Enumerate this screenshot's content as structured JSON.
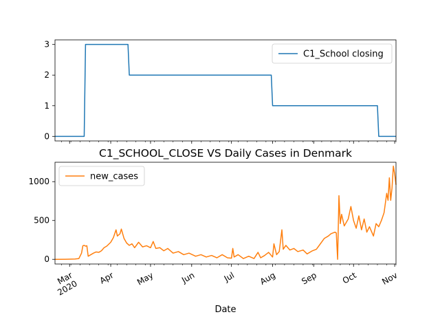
{
  "chart_data": [
    {
      "type": "line",
      "title": "",
      "xlabel": "",
      "ylabel": "",
      "ylim": [
        -0.15,
        3.15
      ],
      "yticks": [
        0,
        1,
        2,
        3
      ],
      "xlim": [
        "2020-02-19",
        "2020-11-02"
      ],
      "grid": false,
      "legend_position": "top-right",
      "series": [
        {
          "name": "C1_School closing",
          "color": "#1f77b4",
          "points": [
            [
              "2020-02-19",
              0
            ],
            [
              "2020-03-12",
              0
            ],
            [
              "2020-03-13",
              3
            ],
            [
              "2020-04-14",
              3
            ],
            [
              "2020-04-15",
              2
            ],
            [
              "2020-07-31",
              2
            ],
            [
              "2020-08-01",
              1
            ],
            [
              "2020-10-19",
              1
            ],
            [
              "2020-10-20",
              0
            ],
            [
              "2020-11-02",
              0
            ]
          ]
        }
      ]
    },
    {
      "type": "line",
      "title": "C1_SCHOOL_CLOSE VS Daily Cases in Denmark",
      "xlabel": "Date",
      "ylabel": "",
      "ylim": [
        -60,
        1250
      ],
      "yticks": [
        0,
        500,
        1000
      ],
      "xlim": [
        "2020-02-19",
        "2020-11-02"
      ],
      "x_ticks": [
        {
          "date": "2020-03-01",
          "label": "Mar",
          "sublabel": "2020"
        },
        {
          "date": "2020-04-01",
          "label": "Apr"
        },
        {
          "date": "2020-05-01",
          "label": "May"
        },
        {
          "date": "2020-06-01",
          "label": "Jun"
        },
        {
          "date": "2020-07-01",
          "label": "Jul"
        },
        {
          "date": "2020-08-01",
          "label": "Aug"
        },
        {
          "date": "2020-09-01",
          "label": "Sep"
        },
        {
          "date": "2020-10-01",
          "label": "Oct"
        },
        {
          "date": "2020-11-01",
          "label": "Nov"
        }
      ],
      "grid": false,
      "legend_position": "top-left",
      "series": [
        {
          "name": "new_cases",
          "color": "#ff7f0e",
          "points": [
            [
              "2020-02-19",
              0
            ],
            [
              "2020-02-27",
              1
            ],
            [
              "2020-03-05",
              4
            ],
            [
              "2020-03-08",
              10
            ],
            [
              "2020-03-10",
              80
            ],
            [
              "2020-03-11",
              175
            ],
            [
              "2020-03-12",
              180
            ],
            [
              "2020-03-13",
              170
            ],
            [
              "2020-03-14",
              175
            ],
            [
              "2020-03-15",
              40
            ],
            [
              "2020-03-17",
              60
            ],
            [
              "2020-03-19",
              80
            ],
            [
              "2020-03-21",
              95
            ],
            [
              "2020-03-23",
              90
            ],
            [
              "2020-03-25",
              110
            ],
            [
              "2020-03-27",
              150
            ],
            [
              "2020-03-29",
              170
            ],
            [
              "2020-04-01",
              220
            ],
            [
              "2020-04-03",
              280
            ],
            [
              "2020-04-05",
              380
            ],
            [
              "2020-04-06",
              300
            ],
            [
              "2020-04-08",
              330
            ],
            [
              "2020-04-09",
              390
            ],
            [
              "2020-04-11",
              270
            ],
            [
              "2020-04-13",
              210
            ],
            [
              "2020-04-15",
              180
            ],
            [
              "2020-04-17",
              200
            ],
            [
              "2020-04-19",
              150
            ],
            [
              "2020-04-22",
              220
            ],
            [
              "2020-04-25",
              160
            ],
            [
              "2020-04-28",
              175
            ],
            [
              "2020-05-01",
              150
            ],
            [
              "2020-05-03",
              230
            ],
            [
              "2020-05-05",
              140
            ],
            [
              "2020-05-08",
              150
            ],
            [
              "2020-05-11",
              110
            ],
            [
              "2020-05-14",
              140
            ],
            [
              "2020-05-18",
              80
            ],
            [
              "2020-05-22",
              100
            ],
            [
              "2020-05-26",
              60
            ],
            [
              "2020-05-30",
              80
            ],
            [
              "2020-06-04",
              40
            ],
            [
              "2020-06-08",
              60
            ],
            [
              "2020-06-12",
              30
            ],
            [
              "2020-06-16",
              50
            ],
            [
              "2020-06-20",
              20
            ],
            [
              "2020-06-24",
              60
            ],
            [
              "2020-06-28",
              20
            ],
            [
              "2020-07-01",
              15
            ],
            [
              "2020-07-02",
              140
            ],
            [
              "2020-07-03",
              30
            ],
            [
              "2020-07-06",
              60
            ],
            [
              "2020-07-10",
              10
            ],
            [
              "2020-07-14",
              40
            ],
            [
              "2020-07-18",
              10
            ],
            [
              "2020-07-21",
              90
            ],
            [
              "2020-07-23",
              20
            ],
            [
              "2020-07-26",
              50
            ],
            [
              "2020-07-29",
              90
            ],
            [
              "2020-08-01",
              30
            ],
            [
              "2020-08-02",
              200
            ],
            [
              "2020-08-04",
              60
            ],
            [
              "2020-08-06",
              100
            ],
            [
              "2020-08-08",
              380
            ],
            [
              "2020-08-09",
              130
            ],
            [
              "2020-08-11",
              180
            ],
            [
              "2020-08-14",
              120
            ],
            [
              "2020-08-17",
              140
            ],
            [
              "2020-08-20",
              100
            ],
            [
              "2020-08-24",
              120
            ],
            [
              "2020-08-27",
              70
            ],
            [
              "2020-08-31",
              110
            ],
            [
              "2020-09-03",
              130
            ],
            [
              "2020-09-06",
              200
            ],
            [
              "2020-09-09",
              270
            ],
            [
              "2020-09-12",
              300
            ],
            [
              "2020-09-14",
              330
            ],
            [
              "2020-09-17",
              350
            ],
            [
              "2020-09-18",
              340
            ],
            [
              "2020-09-19",
              0
            ],
            [
              "2020-09-20",
              820
            ],
            [
              "2020-09-21",
              460
            ],
            [
              "2020-09-22",
              580
            ],
            [
              "2020-09-24",
              430
            ],
            [
              "2020-09-27",
              520
            ],
            [
              "2020-09-29",
              680
            ],
            [
              "2020-10-01",
              500
            ],
            [
              "2020-10-03",
              400
            ],
            [
              "2020-10-05",
              560
            ],
            [
              "2020-10-07",
              380
            ],
            [
              "2020-10-09",
              520
            ],
            [
              "2020-10-11",
              350
            ],
            [
              "2020-10-13",
              420
            ],
            [
              "2020-10-15",
              340
            ],
            [
              "2020-10-16",
              300
            ],
            [
              "2020-10-18",
              460
            ],
            [
              "2020-10-20",
              420
            ],
            [
              "2020-10-22",
              500
            ],
            [
              "2020-10-24",
              600
            ],
            [
              "2020-10-26",
              850
            ],
            [
              "2020-10-27",
              760
            ],
            [
              "2020-10-28",
              1050
            ],
            [
              "2020-10-29",
              760
            ],
            [
              "2020-10-30",
              920
            ],
            [
              "2020-10-31",
              1200
            ],
            [
              "2020-11-01",
              1100
            ],
            [
              "2020-11-02",
              960
            ]
          ]
        }
      ]
    }
  ]
}
